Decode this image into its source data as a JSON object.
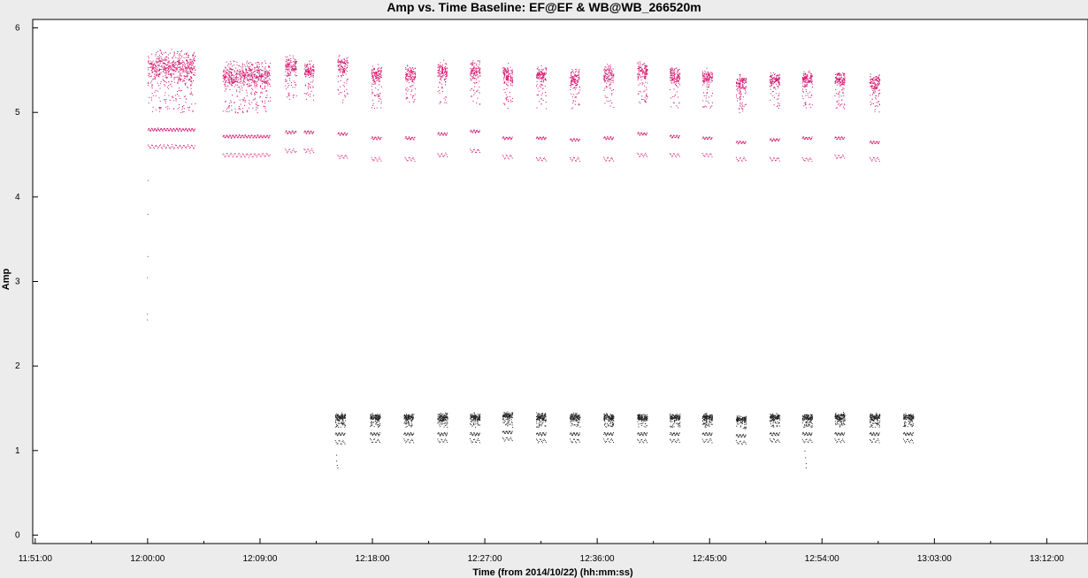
{
  "chart_data": {
    "type": "scatter",
    "title": "Amp vs. Time Baseline: EF@EF & WB@WB_266520m",
    "xlabel": "Time (from 2014/10/22) (hh:mm:ss)",
    "ylabel": "Amp",
    "x_tick_labels": [
      "11:51:00",
      "12:00:00",
      "12:09:00",
      "12:18:00",
      "12:27:00",
      "12:36:00",
      "12:45:00",
      "12:54:00",
      "13:03:00",
      "13:12:00"
    ],
    "x_tick_values_min": [
      711,
      720,
      729,
      738,
      747,
      756,
      765,
      774,
      783,
      792
    ],
    "xlim_min": [
      710.8,
      795.3
    ],
    "y_ticks": [
      0,
      1,
      2,
      3,
      4,
      5,
      6
    ],
    "ylim": [
      -0.1,
      6.1
    ],
    "grid": false,
    "colors": {
      "magenta_series": "#d1106a",
      "black_series": "#222222",
      "background": "#ececec",
      "plot_bg": "#ffffff"
    },
    "series": [
      {
        "color": "magenta",
        "scans": [
          {
            "start": 720.0,
            "end": 723.8,
            "band_center": 5.55,
            "band_spread": 0.25,
            "tail_min": 5.0,
            "lower_center": 4.8,
            "lower2_center": 4.6
          },
          {
            "start": 726.0,
            "end": 729.8,
            "band_center": 5.45,
            "band_spread": 0.22,
            "tail_min": 5.0,
            "lower_center": 4.72,
            "lower2_center": 4.5
          },
          {
            "start": 731.0,
            "end": 731.9,
            "band_center": 5.55,
            "band_spread": 0.18,
            "tail_min": 5.15,
            "lower_center": 4.77,
            "lower2_center": 4.55
          },
          {
            "start": 732.5,
            "end": 733.3,
            "band_center": 5.5,
            "band_spread": 0.15,
            "tail_min": 5.15,
            "lower_center": 4.77,
            "lower2_center": 4.55
          },
          {
            "start": 735.2,
            "end": 736.0,
            "band_center": 5.55,
            "band_spread": 0.15,
            "tail_min": 5.1,
            "lower_center": 4.75,
            "lower2_center": 4.48
          },
          {
            "start": 737.9,
            "end": 738.7,
            "band_center": 5.45,
            "band_spread": 0.15,
            "tail_min": 5.05,
            "lower_center": 4.7,
            "lower2_center": 4.45
          },
          {
            "start": 740.6,
            "end": 741.4,
            "band_center": 5.45,
            "band_spread": 0.15,
            "tail_min": 5.1,
            "lower_center": 4.7,
            "lower2_center": 4.45
          },
          {
            "start": 743.2,
            "end": 744.0,
            "band_center": 5.5,
            "band_spread": 0.15,
            "tail_min": 5.1,
            "lower_center": 4.75,
            "lower2_center": 4.5
          },
          {
            "start": 745.8,
            "end": 746.6,
            "band_center": 5.5,
            "band_spread": 0.15,
            "tail_min": 5.1,
            "lower_center": 4.78,
            "lower2_center": 4.55
          },
          {
            "start": 748.4,
            "end": 749.2,
            "band_center": 5.45,
            "band_spread": 0.15,
            "tail_min": 5.05,
            "lower_center": 4.7,
            "lower2_center": 4.48
          },
          {
            "start": 751.1,
            "end": 751.9,
            "band_center": 5.45,
            "band_spread": 0.15,
            "tail_min": 5.05,
            "lower_center": 4.7,
            "lower2_center": 4.45
          },
          {
            "start": 753.8,
            "end": 754.6,
            "band_center": 5.4,
            "band_spread": 0.15,
            "tail_min": 5.05,
            "lower_center": 4.68,
            "lower2_center": 4.45
          },
          {
            "start": 756.5,
            "end": 757.3,
            "band_center": 5.45,
            "band_spread": 0.15,
            "tail_min": 5.05,
            "lower_center": 4.7,
            "lower2_center": 4.45
          },
          {
            "start": 759.2,
            "end": 760.0,
            "band_center": 5.5,
            "band_spread": 0.15,
            "tail_min": 5.1,
            "lower_center": 4.75,
            "lower2_center": 4.5
          },
          {
            "start": 761.8,
            "end": 762.6,
            "band_center": 5.45,
            "band_spread": 0.15,
            "tail_min": 5.05,
            "lower_center": 4.72,
            "lower2_center": 4.5
          },
          {
            "start": 764.4,
            "end": 765.2,
            "band_center": 5.42,
            "band_spread": 0.14,
            "tail_min": 5.05,
            "lower_center": 4.7,
            "lower2_center": 4.5
          },
          {
            "start": 767.1,
            "end": 767.9,
            "band_center": 5.35,
            "band_spread": 0.14,
            "tail_min": 5.0,
            "lower_center": 4.65,
            "lower2_center": 4.45
          },
          {
            "start": 769.8,
            "end": 770.6,
            "band_center": 5.4,
            "band_spread": 0.14,
            "tail_min": 5.05,
            "lower_center": 4.68,
            "lower2_center": 4.45
          },
          {
            "start": 772.4,
            "end": 773.2,
            "band_center": 5.4,
            "band_spread": 0.14,
            "tail_min": 5.05,
            "lower_center": 4.7,
            "lower2_center": 4.45
          },
          {
            "start": 775.0,
            "end": 775.8,
            "band_center": 5.4,
            "band_spread": 0.14,
            "tail_min": 5.05,
            "lower_center": 4.7,
            "lower2_center": 4.48
          },
          {
            "start": 777.8,
            "end": 778.6,
            "band_center": 5.35,
            "band_spread": 0.14,
            "tail_min": 5.0,
            "lower_center": 4.65,
            "lower2_center": 4.45
          }
        ],
        "outliers": [
          [
            720.0,
            4.2
          ],
          [
            720.0,
            3.8
          ],
          [
            720.0,
            3.3
          ],
          [
            719.95,
            3.05
          ],
          [
            719.95,
            2.62
          ],
          [
            719.95,
            2.55
          ]
        ]
      },
      {
        "color": "black",
        "scans": [
          {
            "start": 735.0,
            "end": 735.8,
            "band_center": 1.4,
            "band_spread": 0.06,
            "tail_min": 1.28,
            "lower_center": 1.2,
            "lower2_center": 1.1
          },
          {
            "start": 737.8,
            "end": 738.6,
            "band_center": 1.4,
            "band_spread": 0.06,
            "tail_min": 1.28,
            "lower_center": 1.2,
            "lower2_center": 1.12
          },
          {
            "start": 740.5,
            "end": 741.3,
            "band_center": 1.4,
            "band_spread": 0.06,
            "tail_min": 1.28,
            "lower_center": 1.2,
            "lower2_center": 1.12
          },
          {
            "start": 743.2,
            "end": 744.0,
            "band_center": 1.4,
            "band_spread": 0.06,
            "tail_min": 1.28,
            "lower_center": 1.2,
            "lower2_center": 1.12
          },
          {
            "start": 745.8,
            "end": 746.6,
            "band_center": 1.4,
            "band_spread": 0.06,
            "tail_min": 1.28,
            "lower_center": 1.2,
            "lower2_center": 1.12
          },
          {
            "start": 748.4,
            "end": 749.2,
            "band_center": 1.42,
            "band_spread": 0.06,
            "tail_min": 1.28,
            "lower_center": 1.22,
            "lower2_center": 1.14
          },
          {
            "start": 751.1,
            "end": 751.9,
            "band_center": 1.4,
            "band_spread": 0.06,
            "tail_min": 1.28,
            "lower_center": 1.2,
            "lower2_center": 1.12
          },
          {
            "start": 753.8,
            "end": 754.6,
            "band_center": 1.4,
            "band_spread": 0.06,
            "tail_min": 1.28,
            "lower_center": 1.2,
            "lower2_center": 1.12
          },
          {
            "start": 756.5,
            "end": 757.3,
            "band_center": 1.4,
            "band_spread": 0.06,
            "tail_min": 1.28,
            "lower_center": 1.2,
            "lower2_center": 1.12
          },
          {
            "start": 759.2,
            "end": 760.0,
            "band_center": 1.4,
            "band_spread": 0.06,
            "tail_min": 1.28,
            "lower_center": 1.2,
            "lower2_center": 1.12
          },
          {
            "start": 761.8,
            "end": 762.6,
            "band_center": 1.4,
            "band_spread": 0.06,
            "tail_min": 1.28,
            "lower_center": 1.2,
            "lower2_center": 1.12
          },
          {
            "start": 764.4,
            "end": 765.2,
            "band_center": 1.4,
            "band_spread": 0.06,
            "tail_min": 1.28,
            "lower_center": 1.2,
            "lower2_center": 1.12
          },
          {
            "start": 767.1,
            "end": 767.9,
            "band_center": 1.38,
            "band_spread": 0.06,
            "tail_min": 1.26,
            "lower_center": 1.18,
            "lower2_center": 1.1
          },
          {
            "start": 769.8,
            "end": 770.6,
            "band_center": 1.4,
            "band_spread": 0.06,
            "tail_min": 1.28,
            "lower_center": 1.2,
            "lower2_center": 1.12
          },
          {
            "start": 772.4,
            "end": 773.2,
            "band_center": 1.4,
            "band_spread": 0.06,
            "tail_min": 1.28,
            "lower_center": 1.2,
            "lower2_center": 1.12
          },
          {
            "start": 775.0,
            "end": 775.8,
            "band_center": 1.4,
            "band_spread": 0.06,
            "tail_min": 1.28,
            "lower_center": 1.2,
            "lower2_center": 1.12
          },
          {
            "start": 777.8,
            "end": 778.6,
            "band_center": 1.4,
            "band_spread": 0.06,
            "tail_min": 1.28,
            "lower_center": 1.2,
            "lower2_center": 1.12
          },
          {
            "start": 780.5,
            "end": 781.3,
            "band_center": 1.4,
            "band_spread": 0.06,
            "tail_min": 1.28,
            "lower_center": 1.2,
            "lower2_center": 1.12
          }
        ],
        "outliers": [
          [
            735.1,
            0.95
          ],
          [
            735.1,
            0.88
          ],
          [
            735.15,
            0.83
          ],
          [
            735.2,
            0.8
          ],
          [
            772.6,
            1.0
          ],
          [
            772.65,
            0.92
          ],
          [
            772.7,
            0.85
          ],
          [
            772.7,
            0.8
          ]
        ]
      }
    ]
  }
}
